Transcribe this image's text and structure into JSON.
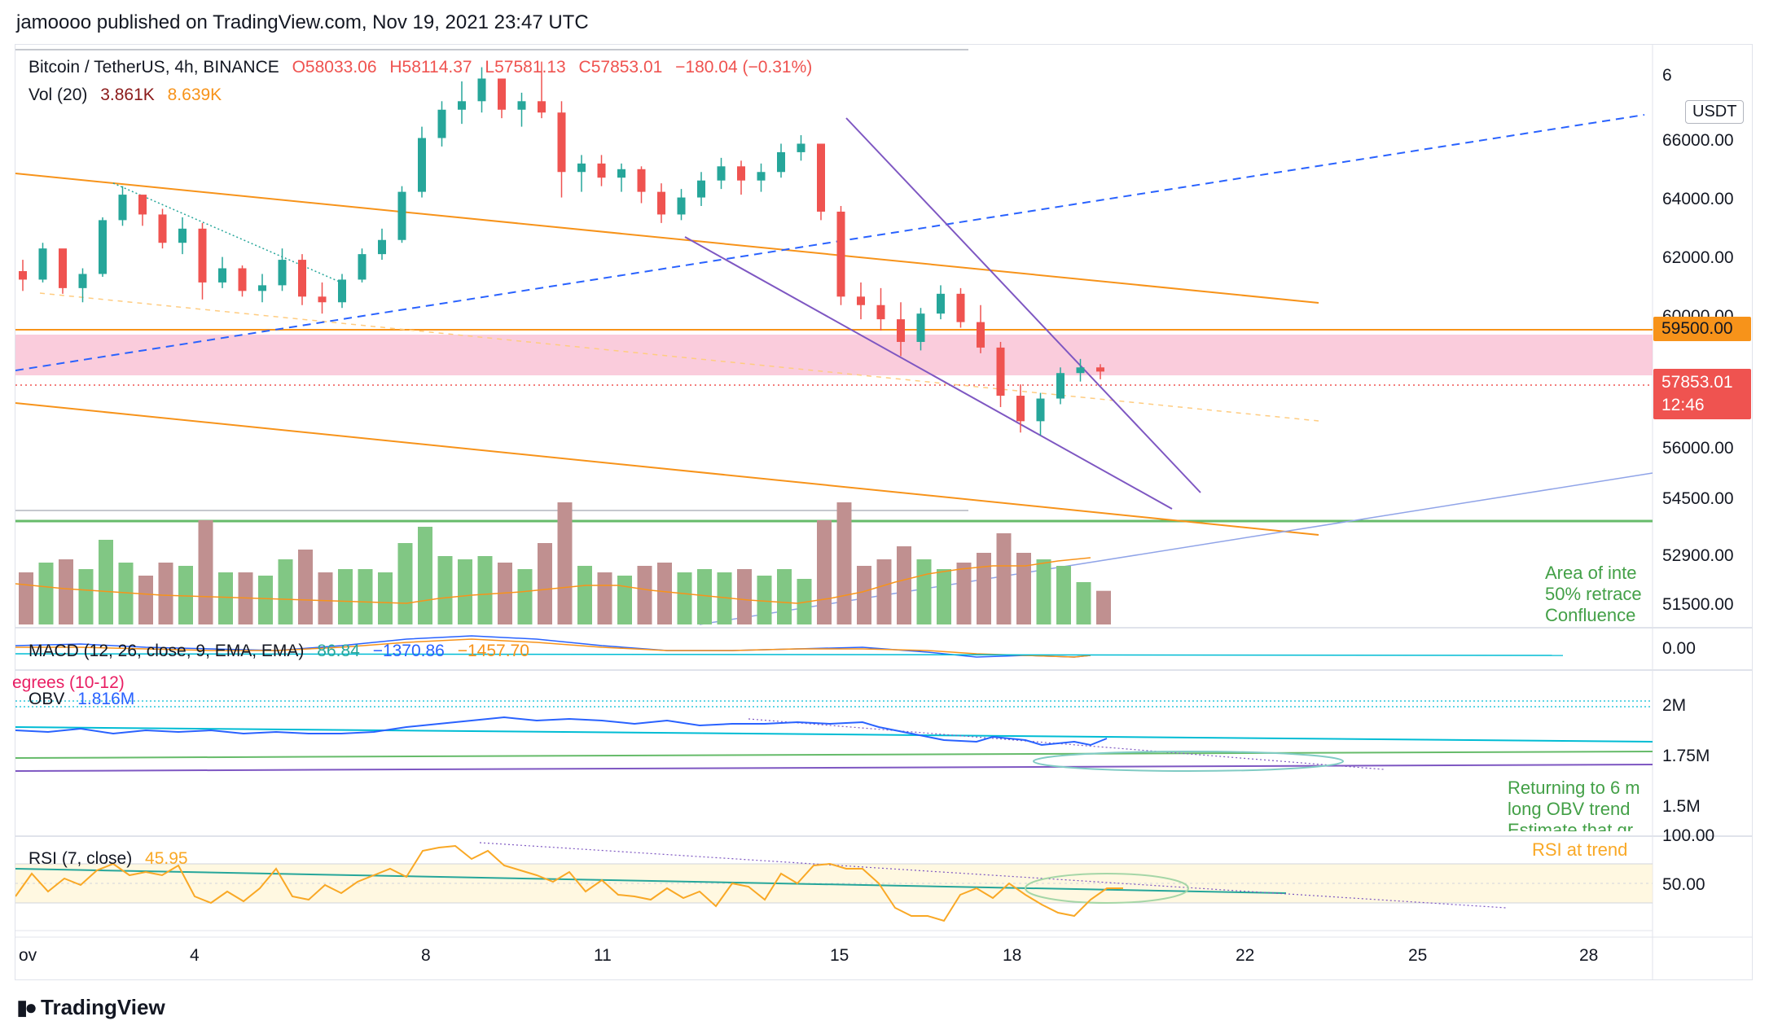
{
  "header": {
    "publisher_line": "jamoooo published on TradingView.com, Nov 19, 2021 23:47 UTC"
  },
  "legend": {
    "symbol": "Bitcoin / TetherUS, 4h, BINANCE",
    "open": "O58033.06",
    "high": "H58114.37",
    "low": "L57581.13",
    "close": "C57853.01",
    "change": "−180.04 (−0.31%)",
    "vol_label": "Vol (20)",
    "vol_value": "3.861K",
    "vol_ma": "8.639K",
    "macd_label": "MACD (12, 26, close, 9, EMA, EMA)",
    "macd_hist": "86.84",
    "macd_line": "−1370.86",
    "macd_signal": "−1457.70",
    "degrees_label": "egrees (10-12)",
    "obv_label": "OBV",
    "obv_value": "1.816M",
    "rsi_label": "RSI (7, close)",
    "rsi_value": "45.95"
  },
  "price_axis": {
    "currency_badge": "USDT",
    "ticks": [
      "66000.00",
      "64000.00",
      "62000.00",
      "60000.00",
      "56000.00",
      "54500.00",
      "52900.00",
      "51500.00"
    ],
    "top_partial": "6",
    "level_tag": "59500.00",
    "last_price_tag": "57853.01",
    "countdown": "12:46",
    "macd_tick": "0.00",
    "obv_ticks": [
      "2M",
      "1.75M",
      "1.5M"
    ],
    "rsi_ticks": [
      "100.00",
      "50.00"
    ]
  },
  "time_axis": {
    "labels": [
      "ov",
      "4",
      "8",
      "11",
      "15",
      "18",
      "22",
      "25",
      "28"
    ]
  },
  "annotations": {
    "area_line1": "Area of inte",
    "area_line2": "50% retrace",
    "area_line3": "Confluence",
    "obv_line1": "Returning to 6 m",
    "obv_line2": "long OBV trend",
    "obv_line3": "Estimate that gr",
    "rsi_note": "RSI at trend"
  },
  "branding": {
    "logo_text": "TradingView"
  },
  "colors": {
    "up": "#26a69a",
    "down": "#ef5350",
    "vol_up": "#81c784",
    "vol_down": "#c09090",
    "orange_line": "#f7931a",
    "purple_line": "#7e57c2",
    "blue_dash": "#2962ff",
    "pink_zone": "#f8bbd0",
    "green_line": "#66bb6a",
    "rsi_line": "#f9a825"
  },
  "chart_data": {
    "type": "candlestick",
    "title": "Bitcoin / TetherUS, 4h, BINANCE",
    "x_dates": [
      "Nov 1",
      "Nov 4",
      "Nov 8",
      "Nov 11",
      "Nov 15",
      "Nov 18",
      "Nov 22",
      "Nov 25",
      "Nov 28"
    ],
    "ohlc_approx": [
      [
        61400,
        61800,
        60700,
        61100
      ],
      [
        61100,
        62400,
        61000,
        62200
      ],
      [
        62200,
        62100,
        60600,
        60800
      ],
      [
        60800,
        61500,
        60300,
        61300
      ],
      [
        61300,
        63300,
        61200,
        63200
      ],
      [
        63200,
        64400,
        63000,
        64100
      ],
      [
        64100,
        64000,
        63000,
        63400
      ],
      [
        63400,
        63600,
        62200,
        62400
      ],
      [
        62400,
        63300,
        62000,
        62900
      ],
      [
        62900,
        63100,
        60400,
        61000
      ],
      [
        61000,
        61900,
        60800,
        61500
      ],
      [
        61500,
        61600,
        60500,
        60700
      ],
      [
        60700,
        61300,
        60300,
        60900
      ],
      [
        60900,
        62200,
        60700,
        61800
      ],
      [
        61800,
        62000,
        60200,
        60500
      ],
      [
        60500,
        61000,
        59900,
        60300
      ],
      [
        60300,
        61300,
        60100,
        61100
      ],
      [
        61100,
        62200,
        61000,
        62000
      ],
      [
        62000,
        62900,
        61800,
        62500
      ],
      [
        62500,
        64400,
        62400,
        64200
      ],
      [
        64200,
        66500,
        64000,
        66100
      ],
      [
        66100,
        67400,
        65800,
        67100
      ],
      [
        67100,
        68100,
        66600,
        67400
      ],
      [
        67400,
        68600,
        67000,
        68200
      ],
      [
        68200,
        68200,
        66800,
        67100
      ],
      [
        67100,
        67700,
        66500,
        67400
      ],
      [
        67400,
        68800,
        66800,
        67000
      ],
      [
        67000,
        67400,
        64000,
        64900
      ],
      [
        64900,
        65500,
        64200,
        65200
      ],
      [
        65200,
        65500,
        64400,
        64700
      ],
      [
        64700,
        65200,
        64200,
        65000
      ],
      [
        65000,
        65100,
        63800,
        64200
      ],
      [
        64200,
        64500,
        63100,
        63400
      ],
      [
        63400,
        64300,
        63200,
        64000
      ],
      [
        64000,
        64900,
        63700,
        64600
      ],
      [
        64600,
        65400,
        64300,
        65100
      ],
      [
        65100,
        65300,
        64100,
        64600
      ],
      [
        64600,
        65200,
        64200,
        64900
      ],
      [
        64900,
        65900,
        64700,
        65600
      ],
      [
        65600,
        66200,
        65300,
        65900
      ],
      [
        65900,
        65900,
        63200,
        63500
      ],
      [
        63500,
        63700,
        60200,
        60500
      ],
      [
        60500,
        61000,
        59700,
        60200
      ],
      [
        60200,
        60800,
        59300,
        59700
      ],
      [
        59700,
        60300,
        58400,
        58900
      ],
      [
        58900,
        60100,
        58600,
        59900
      ],
      [
        59900,
        60900,
        59700,
        60600
      ],
      [
        60600,
        60800,
        59400,
        59600
      ],
      [
        59600,
        60200,
        58500,
        58700
      ],
      [
        58700,
        58900,
        56600,
        57000
      ],
      [
        57000,
        57400,
        55700,
        56100
      ],
      [
        56100,
        57100,
        55600,
        56900
      ],
      [
        56900,
        58000,
        56700,
        57800
      ],
      [
        57800,
        58300,
        57500,
        58000
      ],
      [
        58000,
        58114,
        57581,
        57853
      ]
    ],
    "levels": {
      "resistance": 59500,
      "last": 57853.01
    },
    "macd": {
      "hist": 86.84,
      "macd": -1370.86,
      "signal": -1457.7
    },
    "obv": 1816000,
    "rsi": 45.95
  }
}
